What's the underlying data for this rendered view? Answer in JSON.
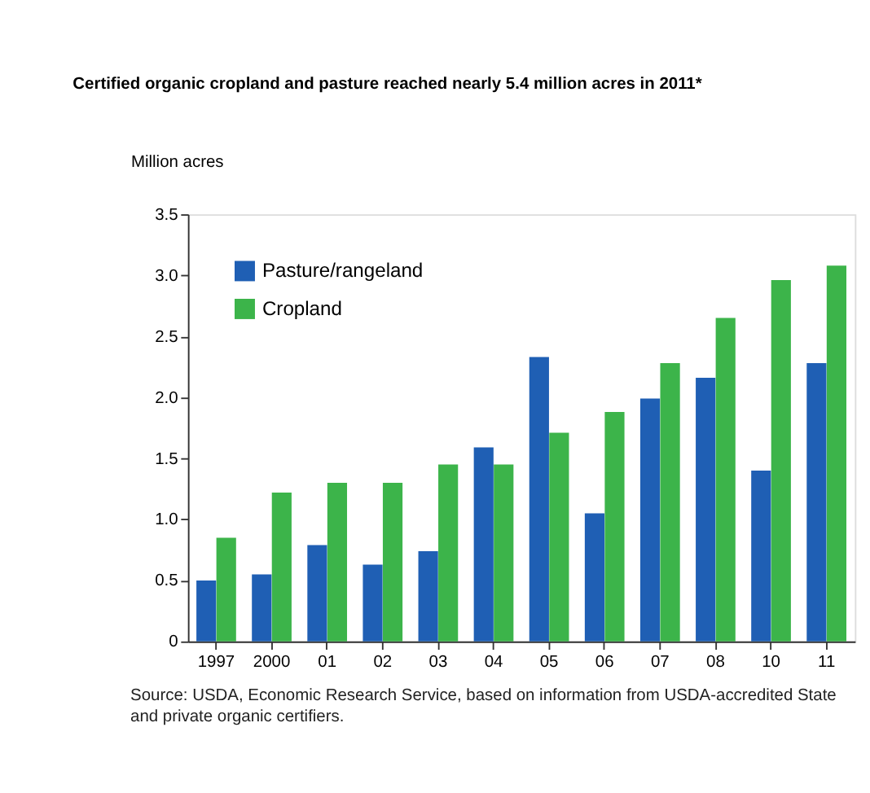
{
  "chart_data": {
    "type": "bar",
    "title": "Certified organic cropland and pasture reached nearly 5.4 million acres in 2011*",
    "ylabel": "Million acres",
    "categories": [
      "1997",
      "2000",
      "01",
      "02",
      "03",
      "04",
      "05",
      "06",
      "07",
      "08",
      "10",
      "11"
    ],
    "series": [
      {
        "name": "Pasture/rangeland",
        "color": "#1f5fb4",
        "values": [
          0.5,
          0.55,
          0.79,
          0.63,
          0.74,
          1.59,
          2.33,
          1.05,
          1.99,
          2.16,
          1.4,
          2.28
        ]
      },
      {
        "name": "Cropland",
        "color": "#3cb44a",
        "values": [
          0.85,
          1.22,
          1.3,
          1.3,
          1.45,
          1.45,
          1.71,
          1.88,
          2.28,
          2.65,
          2.96,
          3.08
        ]
      }
    ],
    "ylim": [
      0,
      3.5
    ],
    "yticks": [
      0,
      {
        "value": 0.5,
        "label": "0.5"
      },
      {
        "value": 1,
        "label": "1.0"
      },
      {
        "value": 1.5,
        "label": "1.5"
      },
      {
        "value": 2,
        "label": "2.0"
      },
      {
        "value": 2.5,
        "label": "2.5"
      },
      {
        "value": 3,
        "label": "3.0"
      },
      {
        "value": 3.5,
        "label": "3.5"
      }
    ],
    "grid": false,
    "legend": "top left",
    "annotations": [
      "Source: USDA, Economic Research Service, based on information from USDA-accredited State and private organic certifiers."
    ]
  }
}
